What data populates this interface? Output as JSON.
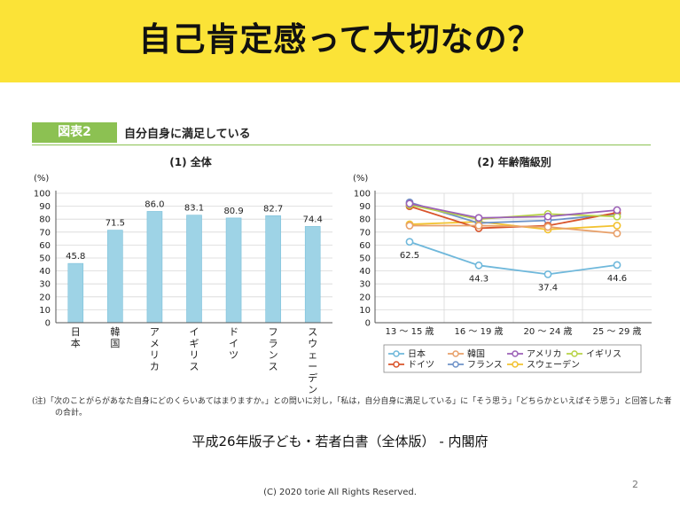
{
  "banner": {
    "title": "自己肯定感って大切なの？"
  },
  "figure": {
    "badge": "図表2",
    "title": "自分自身に満足している",
    "note_line1": "(注)「次のことがらがあなた自身にどのくらいあてはまりますか。」との問いに対し，「私は，自分自身に満足している」に「そう思う」「どちらかといえばそう思う」と回答した者",
    "note_line2": "の合計。"
  },
  "source": "平成26年版子ども・若者白書（全体版） - 内閣府",
  "page_number": "2",
  "copyright": "(C) 2020 torie All Rights Reserved.",
  "chart_data": [
    {
      "type": "bar",
      "title": "(1) 全体",
      "ylabel": "(%)",
      "ylim": [
        0,
        100
      ],
      "yticks": [
        "0",
        "10",
        "20",
        "30",
        "40",
        "50",
        "60",
        "70",
        "80",
        "90",
        "100"
      ],
      "categories": [
        "日本",
        "韓国",
        "アメリカ",
        "イギリス",
        "ドイツ",
        "フランス",
        "スウェーデン"
      ],
      "values": [
        45.8,
        71.5,
        86.0,
        83.1,
        80.9,
        82.7,
        74.4
      ],
      "value_labels": [
        "45.8",
        "71.5",
        "86.0",
        "83.1",
        "80.9",
        "82.7",
        "74.4"
      ],
      "bar_color": "#9ed3e6",
      "grid": true
    },
    {
      "type": "line",
      "title": "(2) 年齢階級別",
      "ylabel": "(%)",
      "ylim": [
        0,
        100
      ],
      "yticks": [
        "0",
        "10",
        "20",
        "30",
        "40",
        "50",
        "60",
        "70",
        "80",
        "90",
        "100"
      ],
      "categories": [
        "13 ～ 15 歳",
        "16 ～ 19 歳",
        "20 ～ 24 歳",
        "25 ～ 29 歳"
      ],
      "legend_position": "bottom",
      "grid": true,
      "series": [
        {
          "name": "日本",
          "color": "#6fb8db",
          "values": [
            62.5,
            44.3,
            37.4,
            44.6
          ],
          "labels": [
            "62.5",
            "44.3",
            "37.4",
            "44.6"
          ]
        },
        {
          "name": "韓国",
          "color": "#e8a06a",
          "values": [
            75,
            75,
            74,
            69
          ]
        },
        {
          "name": "アメリカ",
          "color": "#9c61b7",
          "values": [
            92,
            81,
            82,
            87
          ]
        },
        {
          "name": "イギリス",
          "color": "#b7d345",
          "values": [
            91,
            80,
            84,
            82
          ]
        },
        {
          "name": "ドイツ",
          "color": "#d9542b",
          "values": [
            90,
            73,
            75,
            85
          ]
        },
        {
          "name": "フランス",
          "color": "#6e92c8",
          "values": [
            93,
            77,
            79,
            84
          ]
        },
        {
          "name": "スウェーデン",
          "color": "#f2c230",
          "values": [
            76,
            78,
            72,
            75
          ]
        }
      ]
    }
  ]
}
